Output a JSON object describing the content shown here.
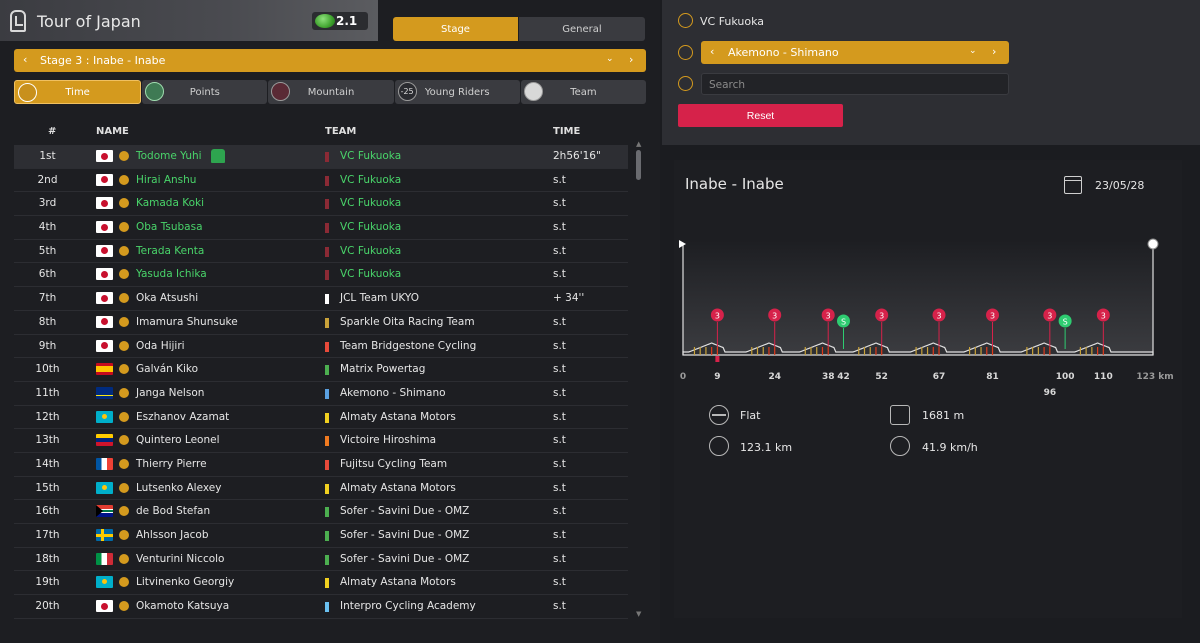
{
  "header": {
    "title": "Tour of Japan",
    "stage_badge": "2.1",
    "tabs": {
      "stage": "Stage",
      "general": "General"
    },
    "stage_select": "Stage 3 : Inabe - Inabe"
  },
  "classification_tabs": [
    {
      "label": "Time",
      "icon": "time-icon",
      "glyph": "",
      "active": true
    },
    {
      "label": "Points",
      "icon": "points-icon",
      "glyph": "",
      "active": false
    },
    {
      "label": "Mountain",
      "icon": "mountain-icon",
      "glyph": "",
      "active": false
    },
    {
      "label": "Young Riders",
      "icon": "young-riders-icon",
      "glyph": "-25",
      "active": false
    },
    {
      "label": "Team",
      "icon": "team-icon",
      "glyph": "",
      "active": false
    }
  ],
  "table": {
    "headers": {
      "pos": "#",
      "name": "NAME",
      "team": "TEAM",
      "time": "TIME"
    },
    "rows": [
      {
        "pos": "1st",
        "flag": "jp",
        "name": "Todome Yuhi",
        "team": "VC Fukuoka",
        "team_color": "#8b2a35",
        "time": "2h56'16\"",
        "highlight": true,
        "jersey": true
      },
      {
        "pos": "2nd",
        "flag": "jp",
        "name": "Hirai Anshu",
        "team": "VC Fukuoka",
        "team_color": "#8b2a35",
        "time": "s.t",
        "highlight": true
      },
      {
        "pos": "3rd",
        "flag": "jp",
        "name": "Kamada Koki",
        "team": "VC Fukuoka",
        "team_color": "#8b2a35",
        "time": "s.t",
        "highlight": true
      },
      {
        "pos": "4th",
        "flag": "jp",
        "name": "Oba Tsubasa",
        "team": "VC Fukuoka",
        "team_color": "#8b2a35",
        "time": "s.t",
        "highlight": true
      },
      {
        "pos": "5th",
        "flag": "jp",
        "name": "Terada Kenta",
        "team": "VC Fukuoka",
        "team_color": "#8b2a35",
        "time": "s.t",
        "highlight": true
      },
      {
        "pos": "6th",
        "flag": "jp",
        "name": "Yasuda Ichika",
        "team": "VC Fukuoka",
        "team_color": "#8b2a35",
        "time": "s.t",
        "highlight": true
      },
      {
        "pos": "7th",
        "flag": "jp",
        "name": "Oka Atsushi",
        "team": "JCL Team UKYO",
        "team_color": "#ffffff",
        "time": "+ 34''",
        "highlight": false
      },
      {
        "pos": "8th",
        "flag": "jp",
        "name": "Imamura Shunsuke",
        "team": "Sparkle Oita Racing Team",
        "team_color": "#c9a23a",
        "time": "s.t",
        "highlight": false
      },
      {
        "pos": "9th",
        "flag": "jp",
        "name": "Oda Hijiri",
        "team": "Team Bridgestone Cycling",
        "team_color": "#e84a3a",
        "time": "s.t",
        "highlight": false
      },
      {
        "pos": "10th",
        "flag": "es",
        "name": "Galván Kiko",
        "team": "Matrix Powertag",
        "team_color": "#4caf50",
        "time": "s.t",
        "highlight": false
      },
      {
        "pos": "11th",
        "flag": "cw",
        "name": "Janga Nelson",
        "team": "Akemono - Shimano",
        "team_color": "#5aa0e0",
        "time": "s.t",
        "highlight": false
      },
      {
        "pos": "12th",
        "flag": "kz",
        "name": "Eszhanov Azamat",
        "team": "Almaty Astana Motors",
        "team_color": "#f0d020",
        "time": "s.t",
        "highlight": false
      },
      {
        "pos": "13th",
        "flag": "ve",
        "name": "Quintero Leonel",
        "team": "Victoire Hiroshima",
        "team_color": "#f07a20",
        "time": "s.t",
        "highlight": false
      },
      {
        "pos": "14th",
        "flag": "fr",
        "name": "Thierry Pierre",
        "team": "Fujitsu Cycling Team",
        "team_color": "#e84a3a",
        "time": "s.t",
        "highlight": false
      },
      {
        "pos": "15th",
        "flag": "kz",
        "name": "Lutsenko Alexey",
        "team": "Almaty Astana Motors",
        "team_color": "#f0d020",
        "time": "s.t",
        "highlight": false
      },
      {
        "pos": "16th",
        "flag": "za",
        "name": "de Bod Stefan",
        "team": "Sofer - Savini Due - OMZ",
        "team_color": "#4caf50",
        "time": "s.t",
        "highlight": false
      },
      {
        "pos": "17th",
        "flag": "se",
        "name": "Ahlsson Jacob",
        "team": "Sofer - Savini Due - OMZ",
        "team_color": "#4caf50",
        "time": "s.t",
        "highlight": false
      },
      {
        "pos": "18th",
        "flag": "it",
        "name": "Venturini Niccolo",
        "team": "Sofer - Savini Due - OMZ",
        "team_color": "#4caf50",
        "time": "s.t",
        "highlight": false
      },
      {
        "pos": "19th",
        "flag": "kz",
        "name": "Litvinenko Georgiy",
        "team": "Almaty Astana Motors",
        "team_color": "#f0d020",
        "time": "s.t",
        "highlight": false
      },
      {
        "pos": "20th",
        "flag": "jp",
        "name": "Okamoto Katsuya",
        "team": "Interpro Cycling Academy",
        "team_color": "#6ac0f0",
        "time": "s.t",
        "highlight": false
      }
    ]
  },
  "filter": {
    "team_label": "VC Fukuoka",
    "team_select": "Akemono - Shimano",
    "search_placeholder": "Search",
    "reset": "Reset"
  },
  "profile": {
    "title": "Inabe - Inabe",
    "date": "23/05/28",
    "total_km": 123,
    "km_labels": [
      {
        "km": 0,
        "text": "0"
      },
      {
        "km": 9,
        "text": "9"
      },
      {
        "km": 24,
        "text": "24"
      },
      {
        "km": 38,
        "text": "38"
      },
      {
        "km": 42,
        "text": "42"
      },
      {
        "km": 52,
        "text": "52"
      },
      {
        "km": 67,
        "text": "67"
      },
      {
        "km": 81,
        "text": "81"
      },
      {
        "km": 96,
        "text": "96",
        "lower": true
      },
      {
        "km": 100,
        "text": "100"
      },
      {
        "km": 110,
        "text": "110"
      },
      {
        "km": 123,
        "text": "123 km"
      }
    ],
    "climbs": [
      {
        "km": 9,
        "label": "3"
      },
      {
        "km": 24,
        "label": "3"
      },
      {
        "km": 38,
        "label": "3"
      },
      {
        "km": 52,
        "label": "3"
      },
      {
        "km": 67,
        "label": "3"
      },
      {
        "km": 81,
        "label": "3"
      },
      {
        "km": 96,
        "label": "3"
      },
      {
        "km": 110,
        "label": "3"
      }
    ],
    "sprints": [
      {
        "km": 42,
        "label": "S"
      },
      {
        "km": 100,
        "label": "S"
      }
    ],
    "stats": {
      "terrain": "Flat",
      "elevation": "1681 m",
      "distance": "123.1 km",
      "speed": "41.9 km/h"
    },
    "colors": {
      "climb": "#d6224a",
      "sprint": "#2ecc71"
    }
  }
}
